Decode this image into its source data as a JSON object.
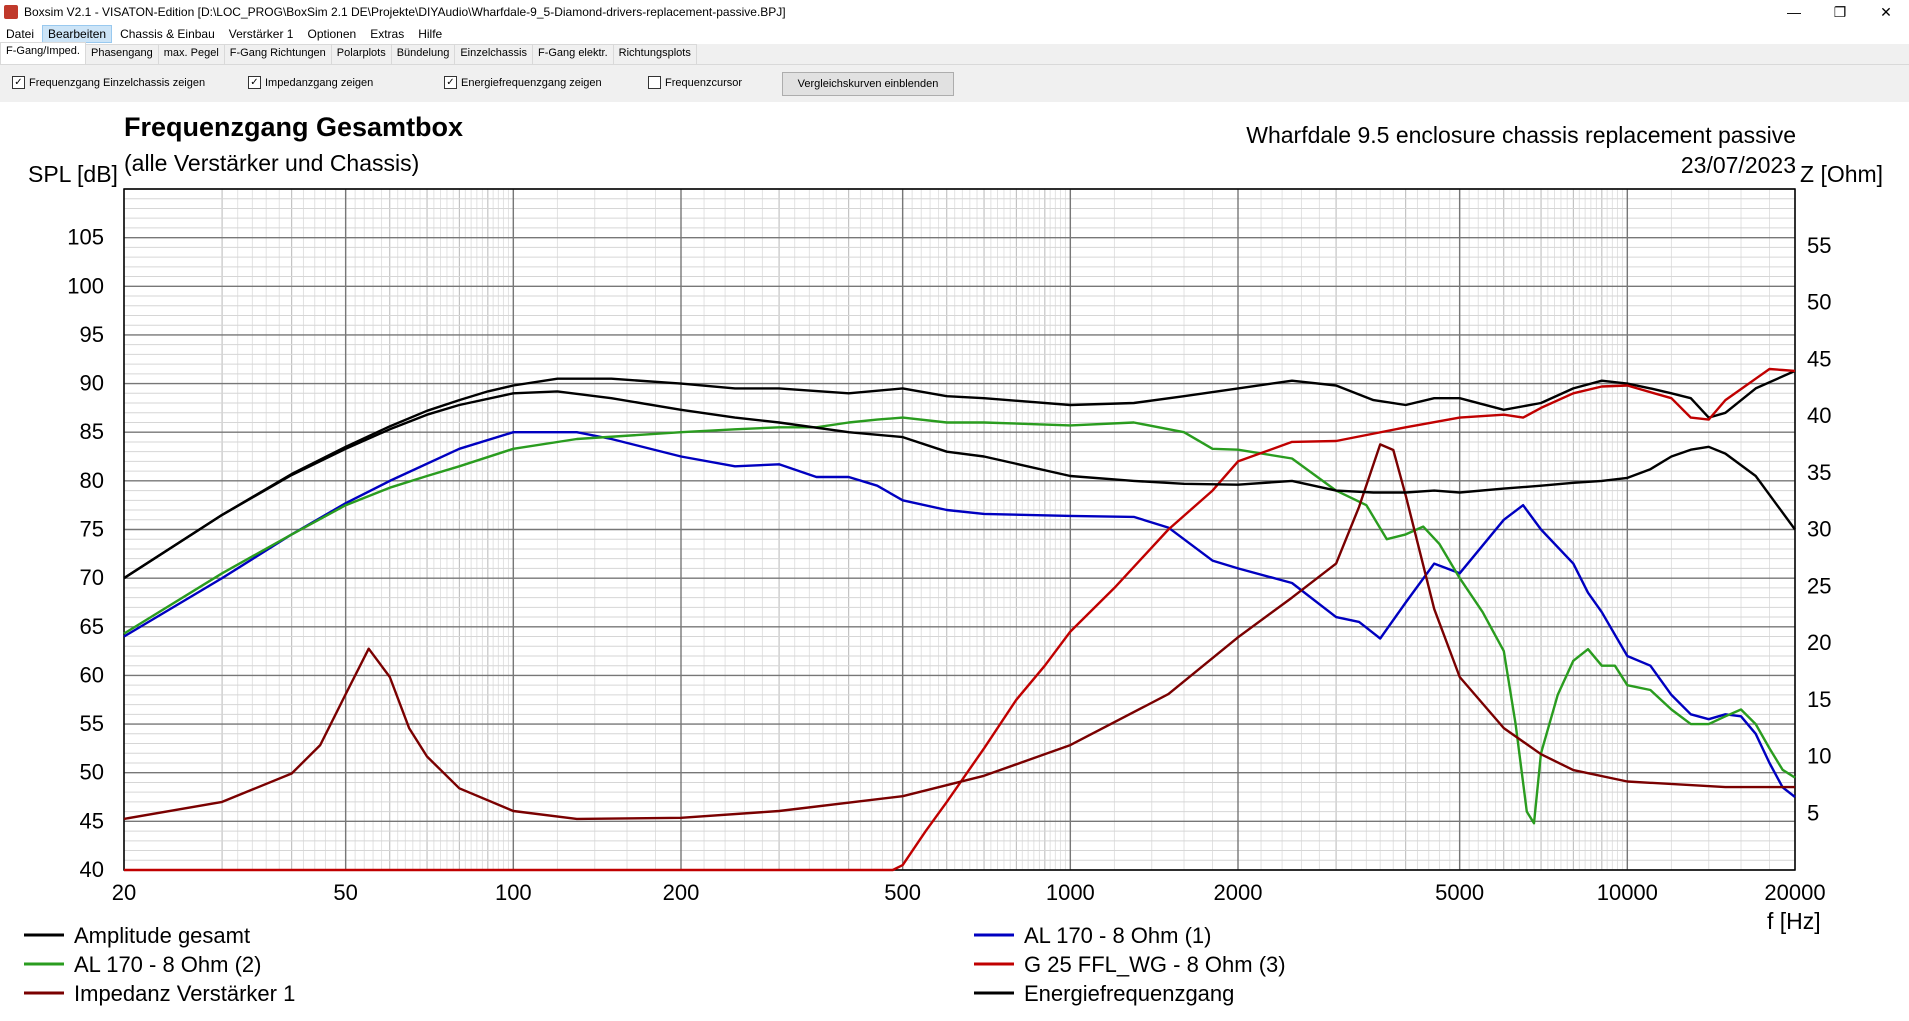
{
  "window": {
    "title": "Boxsim V2.1 - VISATON-Edition [D:\\LOC_PROG\\BoxSim 2.1 DE\\Projekte\\DIYAudio\\Wharfdale-9_5-Diamond-drivers-replacement-passive.BPJ]",
    "minimize": "—",
    "restore": "❐",
    "close": "✕"
  },
  "menu": [
    "Datei",
    "Bearbeiten",
    "Chassis & Einbau",
    "Verstärker 1",
    "Optionen",
    "Extras",
    "Hilfe"
  ],
  "tabs": [
    "F-Gang/Imped.",
    "Phasengang",
    "max. Pegel",
    "F-Gang Richtungen",
    "Polarplots",
    "Bündelung",
    "Einzelchassis",
    "F-Gang elektr.",
    "Richtungsplots"
  ],
  "options": {
    "chk1": "Frequenzgang Einzelchassis zeigen",
    "chk2": "Impedanzgang zeigen",
    "chk3": "Energiefrequenzgang zeigen",
    "chk4": "Frequenzcursor",
    "check_mark": "✓",
    "compare_button": "Vergleichskurven einblenden"
  },
  "chart_header": {
    "title": "Frequenzgang Gesamtbox",
    "subtitle": "(alle Verstärker und Chassis)",
    "project": "Wharfdale 9.5 enclosure chassis replacement passive",
    "date": "23/07/2023"
  },
  "chart_data": {
    "type": "line",
    "x_scale": "log",
    "xlabel": "f [Hz]",
    "ylabel_left": "SPL [dB]",
    "ylabel_right": "Z [Ohm]",
    "xlim": [
      20,
      20000
    ],
    "ylim_left": [
      40,
      110
    ],
    "ylim_right": [
      0,
      60
    ],
    "x_ticks": [
      20,
      50,
      100,
      200,
      500,
      1000,
      2000,
      5000,
      10000,
      20000
    ],
    "y_ticks_left": [
      40,
      45,
      50,
      55,
      60,
      65,
      70,
      75,
      80,
      85,
      90,
      95,
      100,
      105
    ],
    "y_ticks_right": [
      5,
      10,
      15,
      20,
      25,
      30,
      35,
      40,
      45,
      50,
      55
    ],
    "grid": true,
    "legend_placement": "bottom",
    "series": [
      {
        "name": "Amplitude gesamt",
        "color": "#000000",
        "axis": "left",
        "x": [
          20,
          30,
          40,
          50,
          60,
          70,
          80,
          90,
          100,
          120,
          150,
          200,
          250,
          300,
          400,
          500,
          600,
          700,
          1000,
          1300,
          1600,
          2000,
          2500,
          3000,
          3500,
          4000,
          4500,
          5000,
          6000,
          7000,
          8000,
          9000,
          10000,
          11000,
          12000,
          13000,
          14000,
          15000,
          17000,
          20000
        ],
        "y": [
          70,
          76.5,
          80.7,
          83.5,
          85.6,
          87.2,
          88.3,
          89.2,
          89.8,
          90.5,
          90.5,
          90.0,
          89.5,
          89.5,
          89.0,
          89.5,
          88.7,
          88.5,
          87.8,
          88.0,
          88.7,
          89.5,
          90.3,
          89.8,
          88.3,
          87.8,
          88.5,
          88.5,
          87.3,
          88.0,
          89.5,
          90.3,
          90.0,
          89.5,
          89.0,
          88.5,
          86.5,
          87.0,
          89.5,
          91.3
        ]
      },
      {
        "name": "AL 170 - 8 Ohm (1)",
        "color": "#0000c0",
        "axis": "left",
        "x": [
          20,
          30,
          40,
          50,
          60,
          80,
          100,
          130,
          150,
          200,
          250,
          300,
          350,
          400,
          450,
          500,
          600,
          700,
          1000,
          1300,
          1500,
          1800,
          2000,
          2500,
          3000,
          3300,
          3600,
          4000,
          4500,
          5000,
          6000,
          6500,
          7000,
          8000,
          8500,
          9000,
          10000,
          11000,
          12000,
          13000,
          14000,
          15000,
          16000,
          17000,
          18000,
          19000,
          20000
        ],
        "y": [
          64,
          70,
          74.5,
          77.7,
          80,
          83.3,
          85,
          85,
          84.3,
          82.5,
          81.5,
          81.7,
          80.4,
          80.4,
          79.5,
          78,
          77,
          76.6,
          76.4,
          76.3,
          75.2,
          71.8,
          71,
          69.5,
          66,
          65.5,
          63.8,
          67.5,
          71.5,
          70.5,
          76,
          77.5,
          75,
          71.5,
          68.5,
          66.5,
          62,
          61,
          58,
          56,
          55.5,
          56,
          55.8,
          54,
          51,
          48.5,
          47.5
        ]
      },
      {
        "name": "AL 170 - 8 Ohm (2)",
        "color": "#2a9c1f",
        "axis": "left",
        "x": [
          20,
          30,
          40,
          50,
          60,
          70,
          80,
          100,
          130,
          200,
          250,
          300,
          350,
          400,
          450,
          500,
          600,
          700,
          1000,
          1300,
          1600,
          1800,
          2000,
          2500,
          3000,
          3400,
          3700,
          4000,
          4300,
          4600,
          5000,
          5500,
          6000,
          6300,
          6600,
          6800,
          7000,
          7500,
          8000,
          8500,
          9000,
          9500,
          10000,
          11000,
          12000,
          13000,
          14000,
          15000,
          16000,
          17000,
          18000,
          19000,
          20000
        ],
        "y": [
          64.3,
          70.5,
          74.5,
          77.5,
          79.3,
          80.5,
          81.5,
          83.3,
          84.3,
          85,
          85.3,
          85.5,
          85.5,
          86,
          86.3,
          86.5,
          86,
          86,
          85.7,
          86,
          85,
          83.3,
          83.2,
          82.3,
          79,
          77.5,
          74,
          74.5,
          75.3,
          73.5,
          70,
          66.5,
          62.5,
          55,
          46,
          44.8,
          52,
          58,
          61.5,
          62.7,
          61,
          61,
          59,
          58.5,
          56.5,
          55,
          55,
          55.8,
          56.5,
          55,
          52.5,
          50.3,
          49.5
        ]
      },
      {
        "name": "G 25 FFL_WG - 8 Ohm (3)",
        "color": "#c00000",
        "axis": "left",
        "x": [
          20,
          100,
          300,
          480,
          500,
          550,
          600,
          700,
          800,
          900,
          1000,
          1200,
          1500,
          1800,
          2000,
          2500,
          3000,
          4000,
          5000,
          6000,
          6500,
          7000,
          8000,
          9000,
          10000,
          12000,
          13000,
          14000,
          15000,
          17000,
          18000,
          19000,
          20000
        ],
        "y": [
          40,
          40,
          40,
          40,
          40.5,
          44,
          47,
          52.5,
          57.5,
          61,
          64.5,
          69,
          75,
          79,
          82,
          84,
          84.1,
          85.5,
          86.5,
          86.8,
          86.5,
          87.5,
          89,
          89.7,
          89.8,
          88.5,
          86.5,
          86.3,
          88.3,
          90.5,
          91.5,
          91.4,
          91.3
        ]
      },
      {
        "name": "Impedanz Verstärker 1",
        "color": "#7a0000",
        "axis": "right",
        "x": [
          20,
          30,
          40,
          45,
          50,
          55,
          60,
          65,
          70,
          80,
          100,
          130,
          200,
          300,
          500,
          700,
          1000,
          1500,
          2000,
          2500,
          3000,
          3300,
          3600,
          3800,
          4000,
          4500,
          5000,
          6000,
          7000,
          8000,
          10000,
          15000,
          20000
        ],
        "y": [
          4.5,
          6,
          8.5,
          11,
          15.5,
          19.5,
          17,
          12.5,
          10,
          7.2,
          5.2,
          4.5,
          4.6,
          5.2,
          6.5,
          8.3,
          11,
          15.5,
          20.5,
          24,
          27,
          32,
          37.5,
          37,
          33,
          23,
          17,
          12.5,
          10.2,
          8.8,
          7.8,
          7.3,
          7.3
        ]
      },
      {
        "name": "Energiefrequenzgang",
        "color": "#000000",
        "axis": "left",
        "x": [
          20,
          30,
          40,
          50,
          60,
          70,
          80,
          100,
          120,
          150,
          200,
          250,
          300,
          400,
          500,
          600,
          700,
          1000,
          1300,
          1600,
          2000,
          2500,
          3000,
          3500,
          4000,
          4500,
          5000,
          6000,
          7000,
          8000,
          9000,
          10000,
          11000,
          12000,
          13000,
          14000,
          15000,
          17000,
          20000
        ],
        "y": [
          70,
          76.5,
          80.6,
          83.3,
          85.3,
          86.8,
          87.8,
          89,
          89.2,
          88.5,
          87.3,
          86.5,
          86,
          85,
          84.5,
          83,
          82.5,
          80.5,
          80,
          79.7,
          79.6,
          80,
          79,
          78.8,
          78.8,
          79,
          78.8,
          79.2,
          79.5,
          79.8,
          80,
          80.3,
          81.2,
          82.5,
          83.2,
          83.5,
          82.8,
          80.5,
          75
        ]
      }
    ]
  }
}
